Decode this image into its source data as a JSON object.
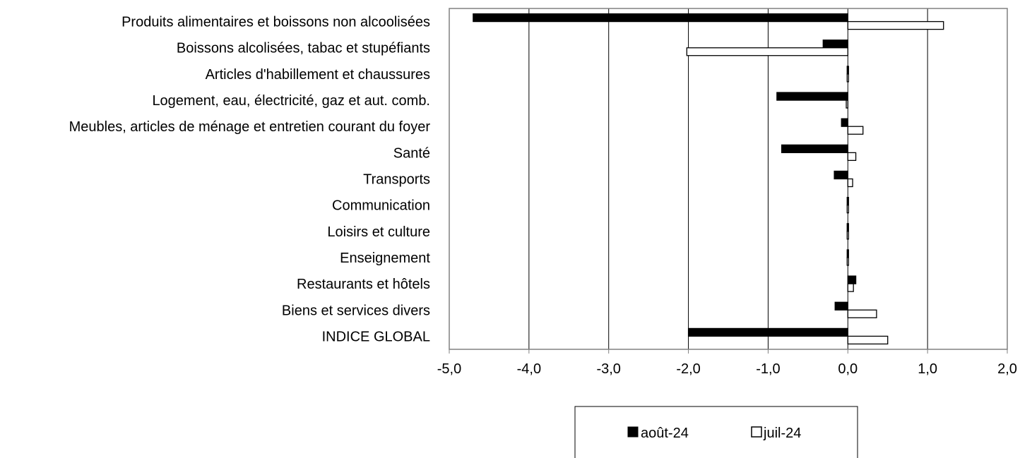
{
  "chart_data": {
    "type": "bar",
    "orientation": "horizontal",
    "categories": [
      "Produits alimentaires et boissons non alcoolisées",
      "Boissons alcolisées, tabac et stupéfiants",
      "Articles d'habillement et chaussures",
      "Logement, eau, électricité, gaz et aut. comb.",
      "Meubles, articles de ménage et entretien courant du foyer",
      "Santé",
      "Transports",
      "Communication",
      "Loisirs et culture",
      "Enseignement",
      "Restaurants et hôtels",
      "Biens et services divers",
      "INDICE GLOBAL"
    ],
    "series": [
      {
        "name": "août-24",
        "color": "#000000",
        "values": [
          -4.7,
          -0.31,
          0.01,
          -0.89,
          -0.08,
          -0.83,
          -0.17,
          0.0,
          0.01,
          0.0,
          0.1,
          -0.16,
          -2.0
        ]
      },
      {
        "name": "juil-24",
        "color": "#ffffff",
        "values": [
          1.2,
          -2.02,
          0.0,
          -0.02,
          0.19,
          0.1,
          0.06,
          -0.01,
          0.0,
          -0.01,
          0.07,
          0.36,
          0.5
        ]
      }
    ],
    "xlim": [
      -5.0,
      2.0
    ],
    "xticks": [
      -5,
      -4,
      -3,
      -2,
      -1,
      0,
      1,
      2
    ],
    "xtick_labels": [
      "-5,0",
      "-4,0",
      "-3,0",
      "-2,0",
      "-1,0",
      "0,0",
      "1,0",
      "2,0"
    ],
    "grid": "vertical",
    "legend": {
      "position": "bottom",
      "items": [
        "août-24",
        "juil-24"
      ]
    },
    "title": "",
    "xlabel": "",
    "ylabel": ""
  }
}
